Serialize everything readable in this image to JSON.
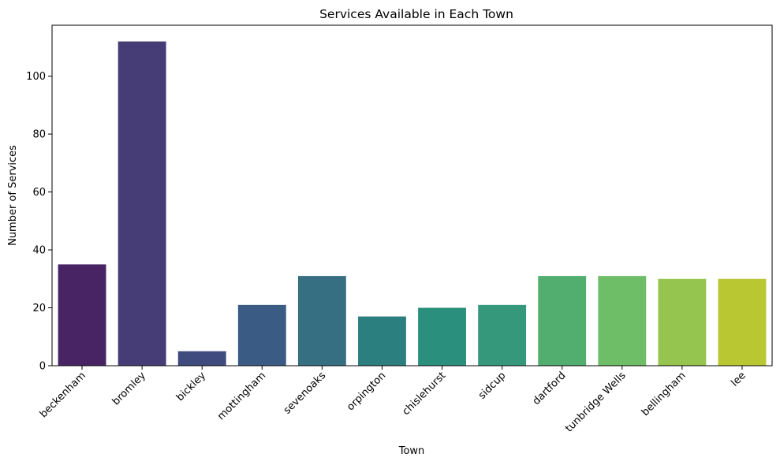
{
  "chart_data": {
    "type": "bar",
    "title": "Services Available in Each Town",
    "xlabel": "Town",
    "ylabel": "Number of Services",
    "categories": [
      "beckenham",
      "bromley",
      "bickley",
      "mottingham",
      "sevenoaks",
      "orpington",
      "chislehurst",
      "sidcup",
      "dartford",
      "tunbridge Wells",
      "bellingham",
      "lee"
    ],
    "values": [
      35,
      112,
      5,
      21,
      31,
      17,
      20,
      21,
      31,
      31,
      30,
      30
    ],
    "colors": [
      "#482465",
      "#473d76",
      "#3f4a7e",
      "#3a5b84",
      "#356f81",
      "#2c7f7f",
      "#2a8f7d",
      "#35987b",
      "#52ae6f",
      "#6ebd67",
      "#95c44f",
      "#b9c832"
    ],
    "ylim": [
      0,
      117.6
    ],
    "yticks": [
      0,
      20,
      40,
      60,
      80,
      100
    ],
    "grid": false,
    "legend": "none"
  }
}
